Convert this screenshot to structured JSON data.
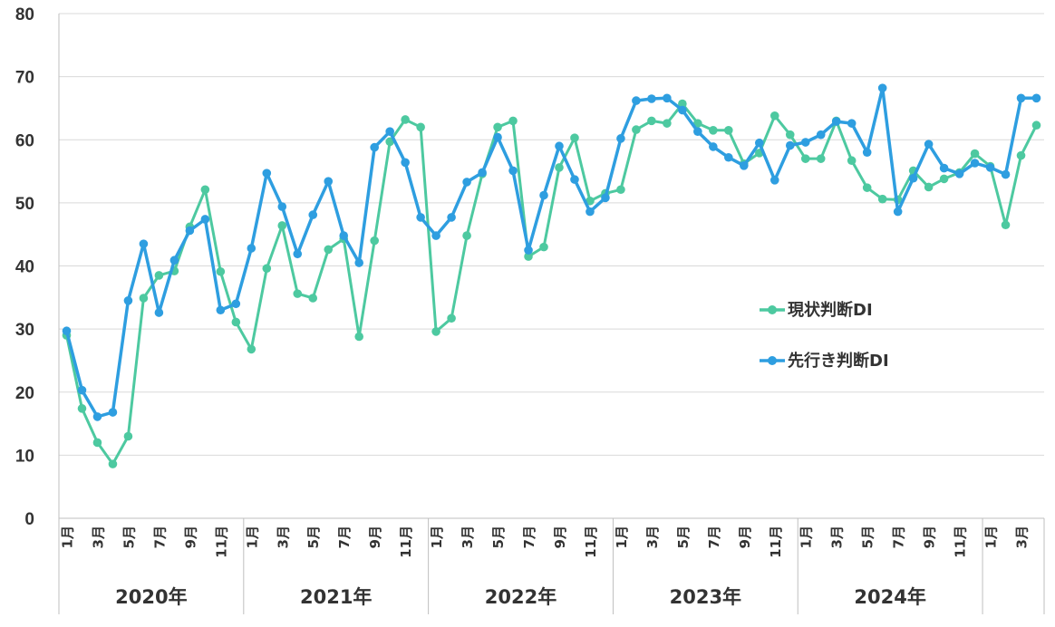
{
  "chart_data": {
    "type": "line",
    "title": "",
    "xlabel": "",
    "ylabel": "",
    "ylim": [
      0,
      80
    ],
    "yticks": [
      "0",
      "10",
      "20",
      "30",
      "40",
      "50",
      "60",
      "70",
      "80"
    ],
    "grid": "horizontal",
    "legend_position": "center-right",
    "years": [
      "2020年",
      "2021年",
      "2022年",
      "2023年",
      "2024年"
    ],
    "month_labels": [
      "1月",
      "",
      "3月",
      "",
      "5月",
      "",
      "7月",
      "",
      "9月",
      "",
      "11月",
      ""
    ],
    "x_count": 64,
    "series": [
      {
        "name": "現状判断DI",
        "color": "#4dc9a0",
        "values": [
          29.0,
          17.4,
          12.0,
          8.6,
          13.0,
          34.9,
          38.5,
          39.2,
          46.2,
          52.1,
          39.1,
          31.1,
          26.8,
          39.6,
          46.4,
          35.6,
          34.9,
          42.6,
          44.3,
          28.8,
          44.0,
          59.7,
          63.2,
          62.0,
          29.6,
          31.7,
          44.8,
          54.6,
          62.0,
          63.0,
          41.5,
          43.0,
          55.6,
          60.3,
          50.3,
          51.5,
          52.1,
          61.6,
          63.0,
          62.6,
          65.7,
          62.6,
          61.5,
          61.5,
          56.2,
          57.9,
          63.8,
          60.8,
          57.0,
          57.0,
          63.0,
          56.7,
          52.4,
          50.6,
          50.5,
          55.1,
          52.5,
          53.8,
          54.8,
          57.8,
          55.8,
          46.5,
          57.5,
          62.3
        ]
      },
      {
        "name": "先行き判断DI",
        "color": "#2e9ee0",
        "values": [
          29.7,
          20.3,
          16.1,
          16.8,
          34.5,
          43.5,
          32.6,
          40.9,
          45.6,
          47.4,
          33.0,
          34.0,
          42.8,
          54.7,
          49.4,
          41.9,
          48.1,
          53.4,
          44.8,
          40.5,
          58.8,
          61.3,
          56.4,
          47.7,
          44.8,
          47.7,
          53.3,
          54.8,
          60.4,
          55.1,
          42.5,
          51.2,
          59.0,
          53.7,
          48.6,
          50.8,
          60.2,
          66.2,
          66.5,
          66.6,
          64.7,
          61.3,
          58.9,
          57.2,
          55.9,
          59.5,
          53.6,
          59.1,
          59.6,
          60.8,
          62.9,
          62.6,
          58.0,
          68.2,
          48.6,
          53.9,
          59.3,
          55.5,
          54.6,
          56.3,
          55.6,
          54.5,
          66.6,
          66.6
        ]
      }
    ]
  }
}
